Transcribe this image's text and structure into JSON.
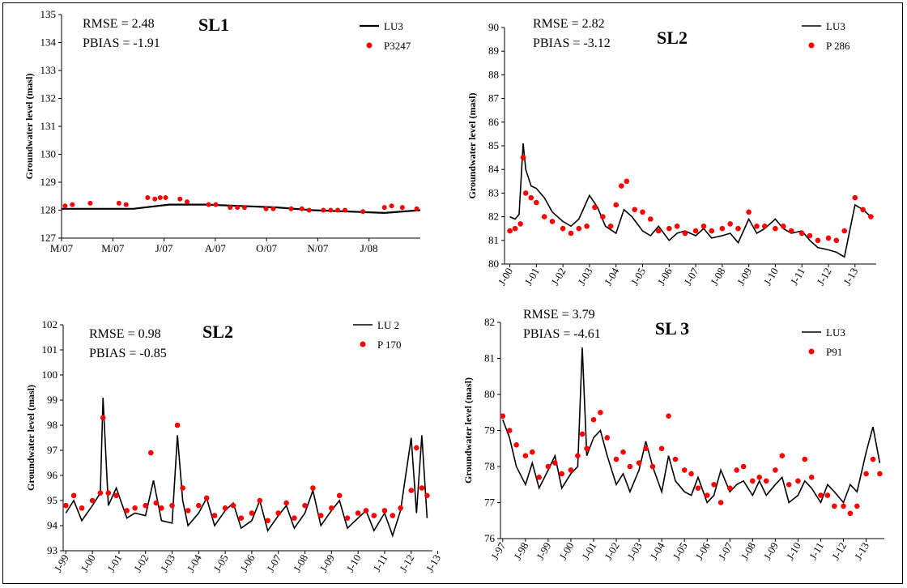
{
  "figure": {
    "colors": {
      "sim": "#000000",
      "obs": "#ff0000"
    }
  },
  "chart_data": [
    {
      "type": "line",
      "title": "SL1",
      "ylabel": "Groundwater level (masl)",
      "ylim": [
        127,
        135
      ],
      "yticks": [
        127,
        128,
        129,
        130,
        131,
        132,
        133,
        134,
        135
      ],
      "x_categories": [
        "M/07",
        "M/07",
        "J/07",
        "A/07",
        "O/07",
        "N/07",
        "J/08"
      ],
      "annotations": [
        "RMSE = 2.48",
        "PBIAS = -1.91"
      ],
      "series": [
        {
          "name": "LU3",
          "kind": "line",
          "x": [
            0,
            10,
            20,
            30,
            40,
            50,
            60,
            70,
            80,
            90,
            100
          ],
          "y": [
            128.05,
            128.05,
            128.05,
            128.2,
            128.2,
            128.15,
            128.1,
            128.0,
            127.95,
            127.9,
            128.0
          ]
        },
        {
          "name": "P3247",
          "kind": "points",
          "x": [
            1,
            3,
            8,
            16,
            18,
            24,
            26,
            27.5,
            29,
            33,
            35,
            41,
            43,
            47,
            49,
            51,
            57,
            59,
            64,
            67,
            69,
            73,
            75,
            77,
            79,
            84,
            90,
            92,
            95,
            99
          ],
          "y": [
            128.15,
            128.2,
            128.25,
            128.25,
            128.2,
            128.45,
            128.4,
            128.45,
            128.45,
            128.4,
            128.3,
            128.2,
            128.2,
            128.1,
            128.1,
            128.1,
            128.05,
            128.05,
            128.05,
            128.05,
            128.0,
            128.0,
            128.0,
            128.0,
            128.0,
            127.95,
            128.1,
            128.15,
            128.1,
            128.05
          ]
        }
      ]
    },
    {
      "type": "line",
      "title": "SL2",
      "ylabel": "Groundwater level (masl)",
      "ylim": [
        80,
        90
      ],
      "yticks": [
        80,
        81,
        82,
        83,
        84,
        85,
        86,
        87,
        88,
        89,
        90
      ],
      "x_categories": [
        "J-00",
        "J-01",
        "J-02",
        "J-03",
        "J-04",
        "J-05",
        "J-06",
        "J-07",
        "J-08",
        "J-09",
        "J-10",
        "J-11",
        "J-12",
        "J-13"
      ],
      "annotations": [
        "RMSE = 2.82",
        "PBIAS = -3.12"
      ],
      "series": [
        {
          "name": "LU3",
          "kind": "line",
          "x": [
            0,
            0.2,
            0.35,
            0.5,
            0.6,
            0.8,
            1.0,
            1.3,
            1.6,
            2.0,
            2.3,
            2.6,
            3.0,
            3.3,
            3.6,
            4.0,
            4.3,
            4.6,
            5.0,
            5.3,
            5.6,
            6.0,
            6.3,
            6.6,
            7.0,
            7.3,
            7.6,
            8.0,
            8.3,
            8.6,
            9.0,
            9.3,
            9.6,
            10.0,
            10.3,
            10.6,
            11.0,
            11.3,
            11.6,
            12.0,
            12.3,
            12.6,
            13.0,
            13.3,
            13.6
          ],
          "y": [
            82.0,
            81.9,
            82.1,
            85.1,
            84.0,
            83.3,
            83.2,
            82.8,
            82.2,
            81.8,
            81.6,
            81.9,
            82.9,
            82.4,
            81.6,
            81.3,
            82.3,
            82.0,
            81.4,
            81.2,
            81.6,
            81.0,
            81.3,
            81.4,
            81.2,
            81.5,
            81.1,
            81.2,
            81.3,
            80.9,
            81.9,
            81.3,
            81.5,
            81.9,
            81.5,
            81.3,
            81.4,
            81.0,
            80.7,
            80.6,
            80.5,
            80.3,
            82.5,
            82.3,
            82.0
          ]
        },
        {
          "name": "P 286",
          "kind": "points",
          "x": [
            0,
            0.2,
            0.4,
            0.5,
            0.6,
            0.8,
            1.0,
            1.3,
            1.6,
            2.0,
            2.3,
            2.6,
            2.9,
            3.2,
            3.5,
            3.8,
            4.0,
            4.2,
            4.4,
            4.7,
            5.0,
            5.3,
            5.6,
            6.0,
            6.3,
            6.6,
            7.0,
            7.3,
            7.6,
            8.0,
            8.3,
            8.6,
            9.0,
            9.3,
            9.6,
            10.0,
            10.3,
            10.6,
            11.0,
            11.3,
            11.6,
            12.0,
            12.3,
            12.6,
            13.0,
            13.3,
            13.6
          ],
          "y": [
            81.4,
            81.5,
            81.7,
            84.5,
            83.0,
            82.8,
            82.6,
            82.0,
            81.8,
            81.5,
            81.3,
            81.5,
            81.6,
            82.4,
            82.0,
            81.6,
            82.5,
            83.3,
            83.5,
            82.3,
            82.2,
            81.9,
            81.4,
            81.5,
            81.6,
            81.3,
            81.4,
            81.6,
            81.4,
            81.5,
            81.7,
            81.5,
            82.2,
            81.6,
            81.6,
            81.5,
            81.6,
            81.4,
            81.3,
            81.2,
            81.0,
            81.1,
            81.0,
            81.4,
            82.8,
            82.3,
            82.0
          ]
        }
      ]
    },
    {
      "type": "line",
      "title": "SL2",
      "ylabel": "Groundwater level (masl)",
      "ylim": [
        93,
        102
      ],
      "yticks": [
        93,
        94,
        95,
        96,
        97,
        98,
        99,
        100,
        101,
        102
      ],
      "x_categories": [
        "J-99",
        "J-00",
        "J-01",
        "J-02",
        "J-03",
        "J-04",
        "J-05",
        "J-06",
        "J-07",
        "J-08",
        "J-09",
        "J-10",
        "J-11",
        "J-12",
        "J-13"
      ],
      "annotations": [
        "RMSE = 0.98",
        "PBIAS = -0.85"
      ],
      "series": [
        {
          "name": "LU 2",
          "kind": "line",
          "x": [
            0,
            0.3,
            0.6,
            1.0,
            1.3,
            1.4,
            1.6,
            1.9,
            2.3,
            2.6,
            3.0,
            3.3,
            3.6,
            4.0,
            4.2,
            4.4,
            4.6,
            5.0,
            5.3,
            5.6,
            6.0,
            6.3,
            6.6,
            7.0,
            7.3,
            7.6,
            8.0,
            8.3,
            8.6,
            9.0,
            9.3,
            9.6,
            10.0,
            10.3,
            10.6,
            11.0,
            11.3,
            11.6,
            12.0,
            12.3,
            12.6,
            13.0,
            13.2,
            13.4,
            13.6
          ],
          "y": [
            94.5,
            95.0,
            94.2,
            94.8,
            95.3,
            99.1,
            94.8,
            95.5,
            94.3,
            94.5,
            94.4,
            95.8,
            94.2,
            94.1,
            97.6,
            95.0,
            94.0,
            94.5,
            95.1,
            94.0,
            94.6,
            94.9,
            93.9,
            94.2,
            95.0,
            93.8,
            94.4,
            94.8,
            93.9,
            94.5,
            95.4,
            94.0,
            94.6,
            95.0,
            93.9,
            94.3,
            94.6,
            93.8,
            94.5,
            93.6,
            94.6,
            97.5,
            94.5,
            97.6,
            94.3
          ]
        },
        {
          "name": "P 170",
          "kind": "points",
          "x": [
            0,
            0.3,
            0.6,
            1.0,
            1.3,
            1.4,
            1.6,
            1.9,
            2.3,
            2.6,
            3.0,
            3.2,
            3.4,
            3.6,
            4.0,
            4.2,
            4.4,
            4.6,
            5.0,
            5.3,
            5.6,
            6.0,
            6.3,
            6.6,
            7.0,
            7.3,
            7.6,
            8.0,
            8.3,
            8.6,
            9.0,
            9.3,
            9.6,
            10.0,
            10.3,
            10.6,
            11.0,
            11.3,
            11.6,
            12.0,
            12.3,
            12.6,
            13.0,
            13.2,
            13.4,
            13.6
          ],
          "y": [
            94.8,
            95.2,
            94.7,
            95.0,
            95.3,
            98.3,
            95.3,
            95.2,
            94.6,
            94.7,
            94.8,
            96.9,
            94.9,
            94.7,
            94.8,
            98.0,
            95.5,
            94.6,
            94.8,
            95.1,
            94.4,
            94.7,
            94.8,
            94.3,
            94.5,
            95.0,
            94.2,
            94.5,
            94.9,
            94.3,
            94.8,
            95.5,
            94.4,
            94.7,
            95.2,
            94.3,
            94.5,
            94.6,
            94.4,
            94.6,
            94.4,
            94.7,
            95.4,
            97.1,
            95.5,
            95.2
          ]
        }
      ]
    },
    {
      "type": "line",
      "title": "SL 3",
      "ylabel": "Groundwater level (masl)",
      "ylim": [
        76,
        82
      ],
      "yticks": [
        76,
        77,
        78,
        79,
        80,
        81,
        82
      ],
      "x_categories": [
        "J-97",
        "J-98",
        "J-99",
        "J-00",
        "J-01",
        "J-02",
        "J-03",
        "J-04",
        "J-05",
        "J-06",
        "J-07",
        "J-08",
        "J-09",
        "J-10",
        "J-11",
        "J-12",
        "J-13"
      ],
      "annotations": [
        "RMSE = 3.79",
        "PBIAS = -4.61"
      ],
      "series": [
        {
          "name": "LU3",
          "kind": "line",
          "x": [
            0,
            0.3,
            0.6,
            1.0,
            1.3,
            1.6,
            2.0,
            2.3,
            2.6,
            3.0,
            3.3,
            3.5,
            3.7,
            4.0,
            4.3,
            4.6,
            5.0,
            5.3,
            5.6,
            6.0,
            6.3,
            6.6,
            7.0,
            7.3,
            7.6,
            8.0,
            8.3,
            8.6,
            9.0,
            9.3,
            9.6,
            10.0,
            10.3,
            10.6,
            11.0,
            11.3,
            11.6,
            12.0,
            12.3,
            12.6,
            13.0,
            13.3,
            13.6,
            14.0,
            14.3,
            14.6,
            15.0,
            15.3,
            15.6,
            16.0,
            16.3,
            16.6
          ],
          "y": [
            79.3,
            78.8,
            78.0,
            77.5,
            78.1,
            77.4,
            77.9,
            78.3,
            77.4,
            77.8,
            78.0,
            81.3,
            78.3,
            78.8,
            79.0,
            78.3,
            77.5,
            77.8,
            77.3,
            77.9,
            78.7,
            78.0,
            77.3,
            78.3,
            77.6,
            77.3,
            77.2,
            77.7,
            77.0,
            77.2,
            77.9,
            77.3,
            77.5,
            77.6,
            77.2,
            77.6,
            77.2,
            77.5,
            77.7,
            77.0,
            77.2,
            77.6,
            77.4,
            77.0,
            77.5,
            77.3,
            77.0,
            77.5,
            77.3,
            78.4,
            79.1,
            78.1
          ]
        },
        {
          "name": "P91",
          "kind": "points",
          "x": [
            0,
            0.3,
            0.6,
            1.0,
            1.3,
            1.6,
            2.0,
            2.3,
            2.6,
            3.0,
            3.3,
            3.5,
            3.7,
            4.0,
            4.3,
            4.6,
            5.0,
            5.3,
            5.6,
            6.0,
            6.3,
            6.6,
            7.0,
            7.3,
            7.6,
            8.0,
            8.3,
            8.6,
            9.0,
            9.3,
            9.6,
            10.0,
            10.3,
            10.6,
            11.0,
            11.3,
            11.6,
            12.0,
            12.3,
            12.6,
            13.0,
            13.3,
            13.6,
            14.0,
            14.3,
            14.6,
            15.0,
            15.3,
            15.6,
            16.0,
            16.3,
            16.6
          ],
          "y": [
            79.4,
            79.0,
            78.6,
            78.3,
            78.4,
            77.7,
            78.0,
            78.1,
            77.8,
            77.9,
            78.3,
            78.9,
            78.5,
            79.3,
            79.5,
            78.8,
            78.2,
            78.4,
            78.0,
            78.1,
            78.5,
            78.0,
            78.5,
            79.4,
            78.2,
            77.9,
            77.8,
            77.4,
            77.2,
            77.5,
            77.0,
            77.4,
            77.9,
            78.0,
            77.6,
            77.7,
            77.6,
            77.9,
            78.3,
            77.5,
            77.6,
            78.2,
            77.7,
            77.2,
            77.2,
            76.9,
            76.9,
            76.7,
            76.9,
            77.8,
            78.2,
            77.8
          ]
        }
      ]
    }
  ]
}
